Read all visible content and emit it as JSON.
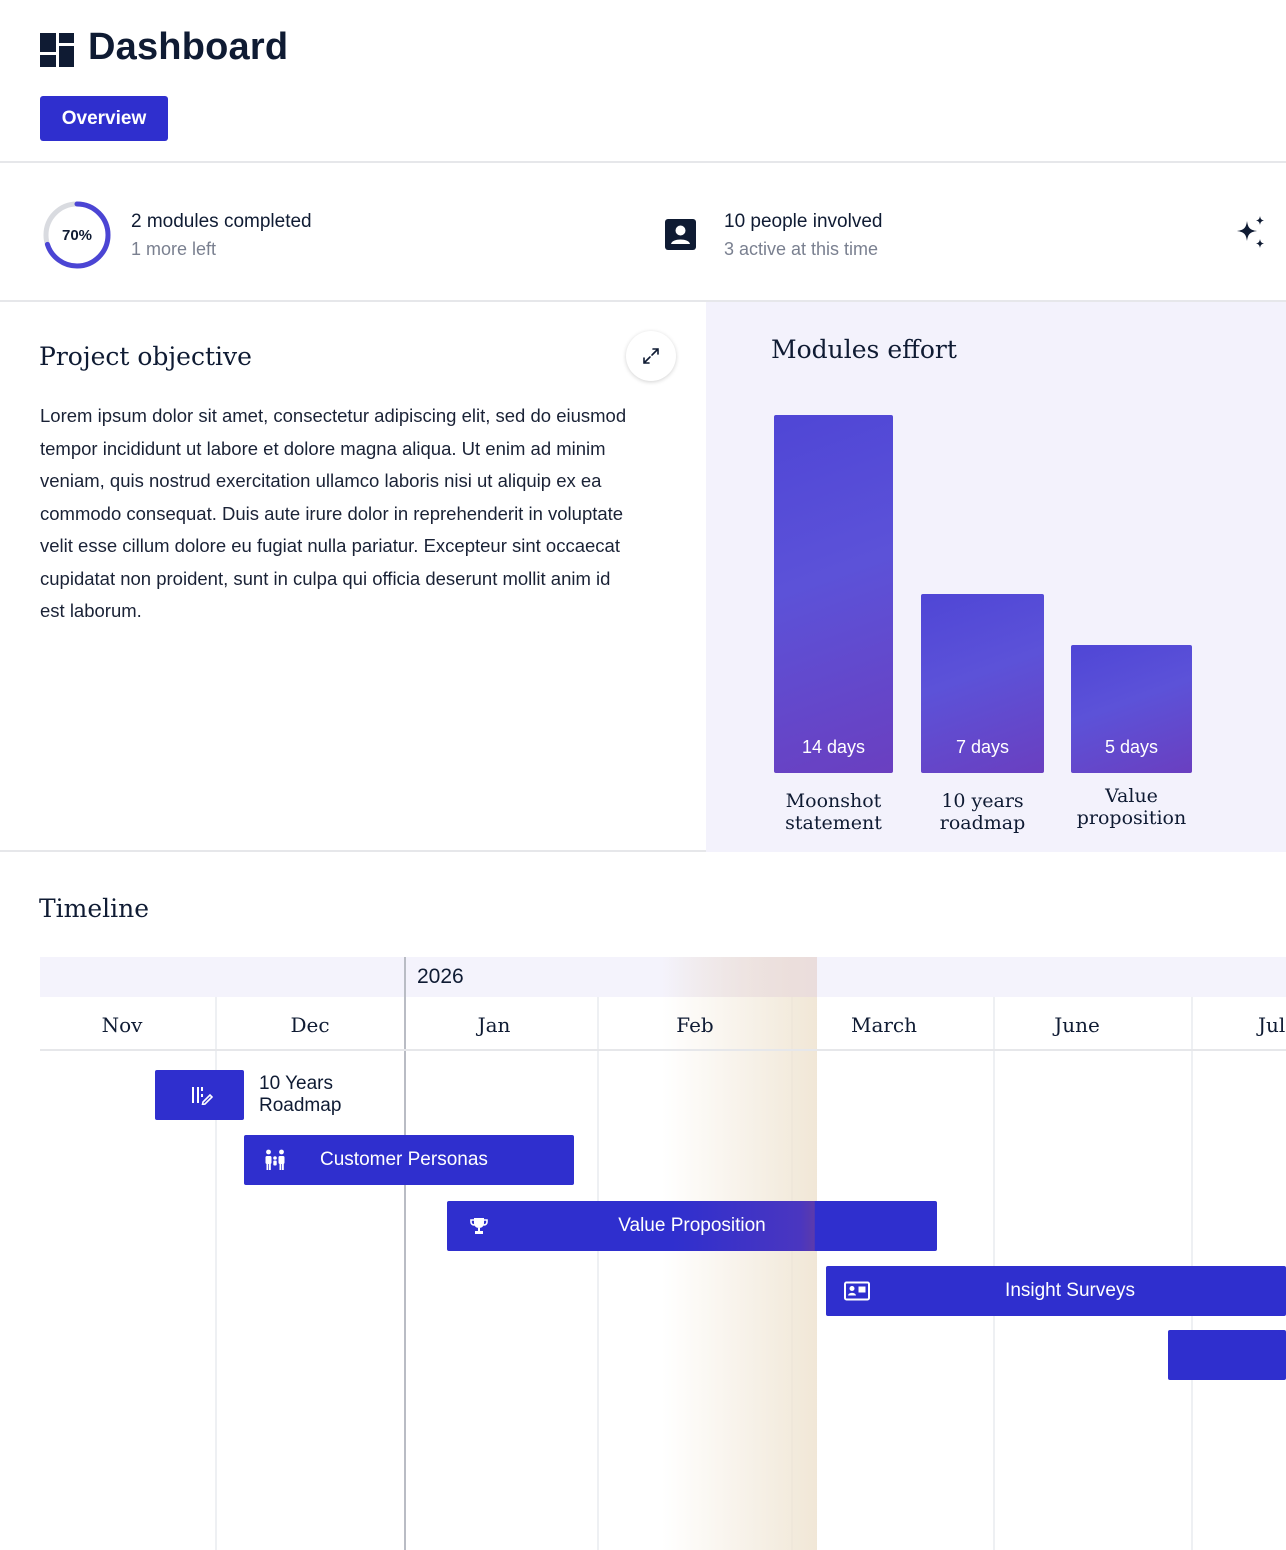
{
  "header": {
    "title": "Dashboard",
    "tab_label": "Overview",
    "logo_icon": "dashboard-grid-icon"
  },
  "stats": {
    "progress_percent": 70,
    "progress_label": "70%",
    "modules_main": "2 modules completed",
    "modules_sub": "1 more left",
    "people_main": "10 people involved",
    "people_sub": "3 active at this time",
    "people_icon": "person-badge-icon",
    "assist_icon": "sparkle-icon"
  },
  "objective": {
    "title": "Project objective",
    "body": "Lorem ipsum dolor sit amet, consectetur adipiscing elit, sed do eiusmod tempor incididunt ut labore et dolore magna aliqua. Ut enim ad minim veniam, quis nostrud exercitation ullamco laboris nisi ut aliquip ex ea commodo consequat. Duis aute irure dolor in reprehenderit in voluptate velit esse cillum dolore eu fugiat nulla pariatur. Excepteur sint occaecat cupidatat non proident, sunt in culpa qui officia deserunt mollit anim id est laborum.",
    "expand_icon": "expand-icon"
  },
  "chart_data": {
    "type": "bar",
    "title": "Modules effort",
    "categories": [
      "Moonshot statement",
      "10 years roadmap",
      "Value proposition"
    ],
    "values": [
      14,
      7,
      5
    ],
    "value_labels": [
      "14 days",
      "7 days",
      "5 days"
    ],
    "unit": "days",
    "grid": false,
    "colors": [
      "#4f46d6",
      "#6a3fc0"
    ]
  },
  "timeline": {
    "title": "Timeline",
    "year": "2026",
    "months": [
      "Nov",
      "Dec",
      "Jan",
      "Feb",
      "March",
      "June",
      "Jul"
    ],
    "tasks": [
      {
        "label": "10 Years Roadmap",
        "icon": "roadmap-icon"
      },
      {
        "label": "Customer Personas",
        "icon": "people-icon"
      },
      {
        "label": "Value Proposition",
        "icon": "trophy-icon"
      },
      {
        "label": "Insight Surveys",
        "icon": "contact-card-icon"
      },
      {
        "label": "",
        "icon": ""
      }
    ],
    "accent": "#2f2fce",
    "today_color": "#c99640"
  }
}
